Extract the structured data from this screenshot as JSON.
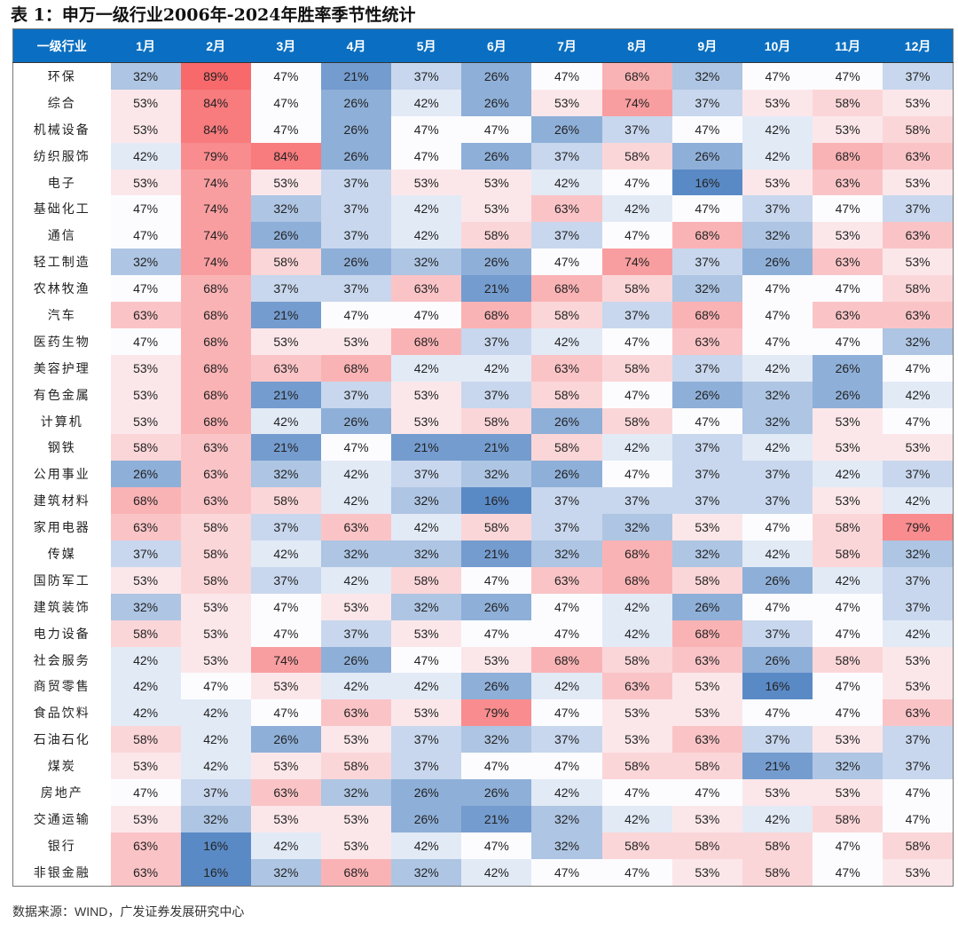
{
  "title": "表 1：申万一级行业2006年-2024年胜率季节性统计",
  "source": "数据来源：WIND，广发证券发展研究中心",
  "colors": {
    "header": "#0a6fc2",
    "low": "#5a8ac6",
    "mid": "#fcfcff",
    "high": "#f8696b"
  },
  "chart_data": {
    "type": "heatmap",
    "title": "表 1：申万一级行业2006年-2024年胜率季节性统计",
    "corner_label": "一级行业",
    "columns": [
      "1月",
      "2月",
      "3月",
      "4月",
      "5月",
      "6月",
      "7月",
      "8月",
      "9月",
      "10月",
      "11月",
      "12月"
    ],
    "unit": "%",
    "rows": [
      {
        "name": "环保",
        "values": [
          32,
          89,
          47,
          21,
          37,
          26,
          47,
          68,
          32,
          47,
          47,
          37
        ]
      },
      {
        "name": "综合",
        "values": [
          53,
          84,
          47,
          26,
          42,
          26,
          53,
          74,
          37,
          53,
          58,
          53
        ]
      },
      {
        "name": "机械设备",
        "values": [
          53,
          84,
          47,
          26,
          47,
          47,
          26,
          37,
          47,
          42,
          53,
          58
        ]
      },
      {
        "name": "纺织服饰",
        "values": [
          42,
          79,
          84,
          26,
          47,
          26,
          37,
          58,
          26,
          42,
          68,
          63
        ]
      },
      {
        "name": "电子",
        "values": [
          53,
          74,
          53,
          37,
          53,
          53,
          42,
          47,
          16,
          53,
          63,
          53
        ]
      },
      {
        "name": "基础化工",
        "values": [
          47,
          74,
          32,
          37,
          42,
          53,
          63,
          42,
          47,
          37,
          47,
          37
        ]
      },
      {
        "name": "通信",
        "values": [
          47,
          74,
          26,
          37,
          42,
          58,
          37,
          47,
          68,
          32,
          53,
          63
        ]
      },
      {
        "name": "轻工制造",
        "values": [
          32,
          74,
          58,
          26,
          32,
          26,
          47,
          74,
          37,
          26,
          63,
          53
        ]
      },
      {
        "name": "农林牧渔",
        "values": [
          47,
          68,
          37,
          37,
          63,
          21,
          68,
          58,
          32,
          47,
          47,
          58
        ]
      },
      {
        "name": "汽车",
        "values": [
          63,
          68,
          21,
          47,
          47,
          68,
          58,
          37,
          68,
          47,
          63,
          63
        ]
      },
      {
        "name": "医药生物",
        "values": [
          47,
          68,
          53,
          53,
          68,
          37,
          42,
          47,
          63,
          47,
          47,
          32
        ]
      },
      {
        "name": "美容护理",
        "values": [
          53,
          68,
          63,
          68,
          42,
          42,
          63,
          58,
          37,
          42,
          26,
          47
        ]
      },
      {
        "name": "有色金属",
        "values": [
          53,
          68,
          21,
          37,
          53,
          37,
          58,
          47,
          26,
          32,
          26,
          42
        ]
      },
      {
        "name": "计算机",
        "values": [
          53,
          68,
          42,
          26,
          53,
          58,
          26,
          58,
          47,
          32,
          53,
          47
        ]
      },
      {
        "name": "钢铁",
        "values": [
          58,
          63,
          21,
          47,
          21,
          21,
          58,
          42,
          37,
          42,
          53,
          53
        ]
      },
      {
        "name": "公用事业",
        "values": [
          26,
          63,
          32,
          42,
          37,
          32,
          26,
          47,
          37,
          37,
          42,
          37
        ]
      },
      {
        "name": "建筑材料",
        "values": [
          68,
          63,
          58,
          42,
          32,
          16,
          37,
          37,
          37,
          37,
          53,
          42
        ]
      },
      {
        "name": "家用电器",
        "values": [
          63,
          58,
          37,
          63,
          42,
          58,
          37,
          32,
          53,
          47,
          58,
          79
        ]
      },
      {
        "name": "传媒",
        "values": [
          37,
          58,
          42,
          32,
          32,
          21,
          32,
          68,
          32,
          42,
          58,
          32
        ]
      },
      {
        "name": "国防军工",
        "values": [
          53,
          58,
          37,
          42,
          58,
          47,
          63,
          68,
          58,
          26,
          42,
          37
        ]
      },
      {
        "name": "建筑装饰",
        "values": [
          32,
          53,
          47,
          53,
          32,
          26,
          47,
          42,
          26,
          47,
          47,
          37
        ]
      },
      {
        "name": "电力设备",
        "values": [
          58,
          53,
          47,
          37,
          53,
          47,
          47,
          42,
          68,
          37,
          47,
          42
        ]
      },
      {
        "name": "社会服务",
        "values": [
          42,
          53,
          74,
          26,
          47,
          53,
          68,
          58,
          63,
          26,
          58,
          53
        ]
      },
      {
        "name": "商贸零售",
        "values": [
          42,
          47,
          53,
          42,
          42,
          26,
          42,
          63,
          53,
          16,
          47,
          53
        ]
      },
      {
        "name": "食品饮料",
        "values": [
          42,
          42,
          47,
          63,
          53,
          79,
          47,
          53,
          53,
          47,
          47,
          63
        ]
      },
      {
        "name": "石油石化",
        "values": [
          58,
          42,
          26,
          53,
          37,
          32,
          37,
          53,
          63,
          37,
          53,
          37
        ]
      },
      {
        "name": "煤炭",
        "values": [
          53,
          42,
          53,
          58,
          37,
          47,
          47,
          58,
          58,
          21,
          32,
          37
        ]
      },
      {
        "name": "房地产",
        "values": [
          47,
          37,
          63,
          32,
          26,
          26,
          42,
          47,
          47,
          53,
          53,
          47
        ]
      },
      {
        "name": "交通运输",
        "values": [
          53,
          32,
          53,
          53,
          26,
          21,
          32,
          42,
          53,
          42,
          58,
          47
        ]
      },
      {
        "name": "银行",
        "values": [
          63,
          16,
          42,
          53,
          42,
          47,
          32,
          58,
          58,
          58,
          47,
          58
        ]
      },
      {
        "name": "非银金融",
        "values": [
          63,
          16,
          32,
          68,
          32,
          42,
          47,
          47,
          53,
          58,
          47,
          53
        ]
      }
    ],
    "color_scale": {
      "min": 16,
      "mid": 47,
      "max": 89
    }
  }
}
